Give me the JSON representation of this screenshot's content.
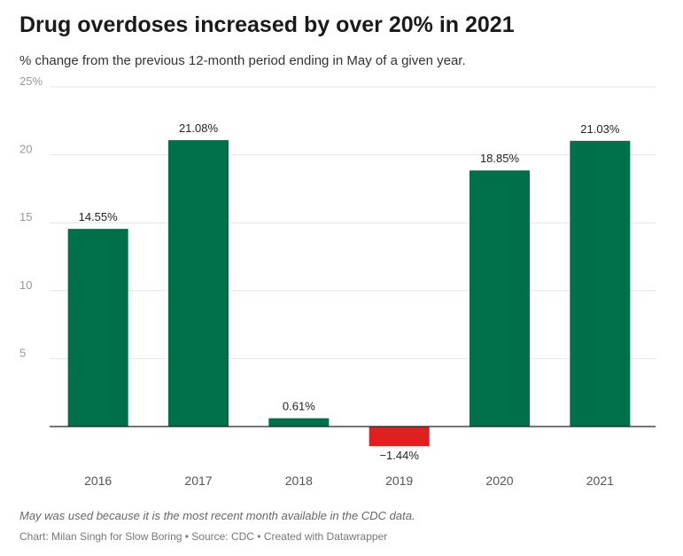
{
  "header": {
    "title": "Drug overdoses increased by over 20% in 2021",
    "subtitle": "% change from the previous 12-month period ending in May of a given year."
  },
  "footer": {
    "note": "May was used because it is the most recent month available in the CDC data.",
    "byline": "Chart: Milan Singh for Slow Boring • Source: CDC • Created with Datawrapper"
  },
  "colors": {
    "positive": "#00704a",
    "negative": "#e02020",
    "grid": "#e5e5e5",
    "axis": "#222222",
    "tick_text": "#999999",
    "label_text": "#222222",
    "category_text": "#555555"
  },
  "chart_data": {
    "type": "bar",
    "title": "Drug overdoses increased by over 20% in 2021",
    "subtitle": "% change from the previous 12-month period ending in May of a given year.",
    "categories": [
      "2016",
      "2017",
      "2018",
      "2019",
      "2020",
      "2021"
    ],
    "values": [
      14.55,
      21.08,
      0.61,
      -1.44,
      18.85,
      21.03
    ],
    "data_labels": [
      "14.55%",
      "21.08%",
      "0.61%",
      "−1.44%",
      "18.85%",
      "21.03%"
    ],
    "yticks": [
      {
        "value": 5,
        "label": "5"
      },
      {
        "value": 10,
        "label": "10"
      },
      {
        "value": 15,
        "label": "15"
      },
      {
        "value": 20,
        "label": "20"
      },
      {
        "value": 25,
        "label": "25%"
      }
    ],
    "ylim": [
      0,
      25
    ],
    "xlabel": "",
    "ylabel": "",
    "grid": true,
    "legend": "none"
  }
}
